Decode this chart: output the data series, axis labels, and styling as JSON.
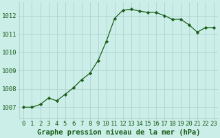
{
  "x": [
    0,
    1,
    2,
    3,
    4,
    5,
    6,
    7,
    8,
    9,
    10,
    11,
    12,
    13,
    14,
    15,
    16,
    17,
    18,
    19,
    20,
    21,
    22,
    23
  ],
  "y": [
    1007.0,
    1007.0,
    1007.15,
    1007.5,
    1007.35,
    1007.7,
    1008.05,
    1008.5,
    1008.85,
    1009.55,
    1010.6,
    1011.85,
    1012.3,
    1012.35,
    1012.25,
    1012.18,
    1012.18,
    1012.0,
    1011.8,
    1011.8,
    1011.5,
    1011.1,
    1011.35,
    1011.35
  ],
  "line_color": "#1a5e1a",
  "marker": "D",
  "marker_size": 2.2,
  "bg_color": "#cceee8",
  "grid_color": "#aacccc",
  "xlabel": "Graphe pression niveau de la mer (hPa)",
  "xlabel_fontsize": 7.5,
  "yticks": [
    1007,
    1008,
    1009,
    1010,
    1011,
    1012
  ],
  "xtick_labels": [
    "0",
    "1",
    "2",
    "3",
    "4",
    "5",
    "6",
    "7",
    "8",
    "9",
    "10",
    "11",
    "12",
    "13",
    "14",
    "15",
    "16",
    "17",
    "18",
    "19",
    "20",
    "21",
    "22",
    "23"
  ],
  "ylim": [
    1006.4,
    1012.75
  ],
  "xlim": [
    -0.5,
    23.5
  ],
  "tick_label_fontsize": 6.5,
  "label_color": "#1a5e1a"
}
